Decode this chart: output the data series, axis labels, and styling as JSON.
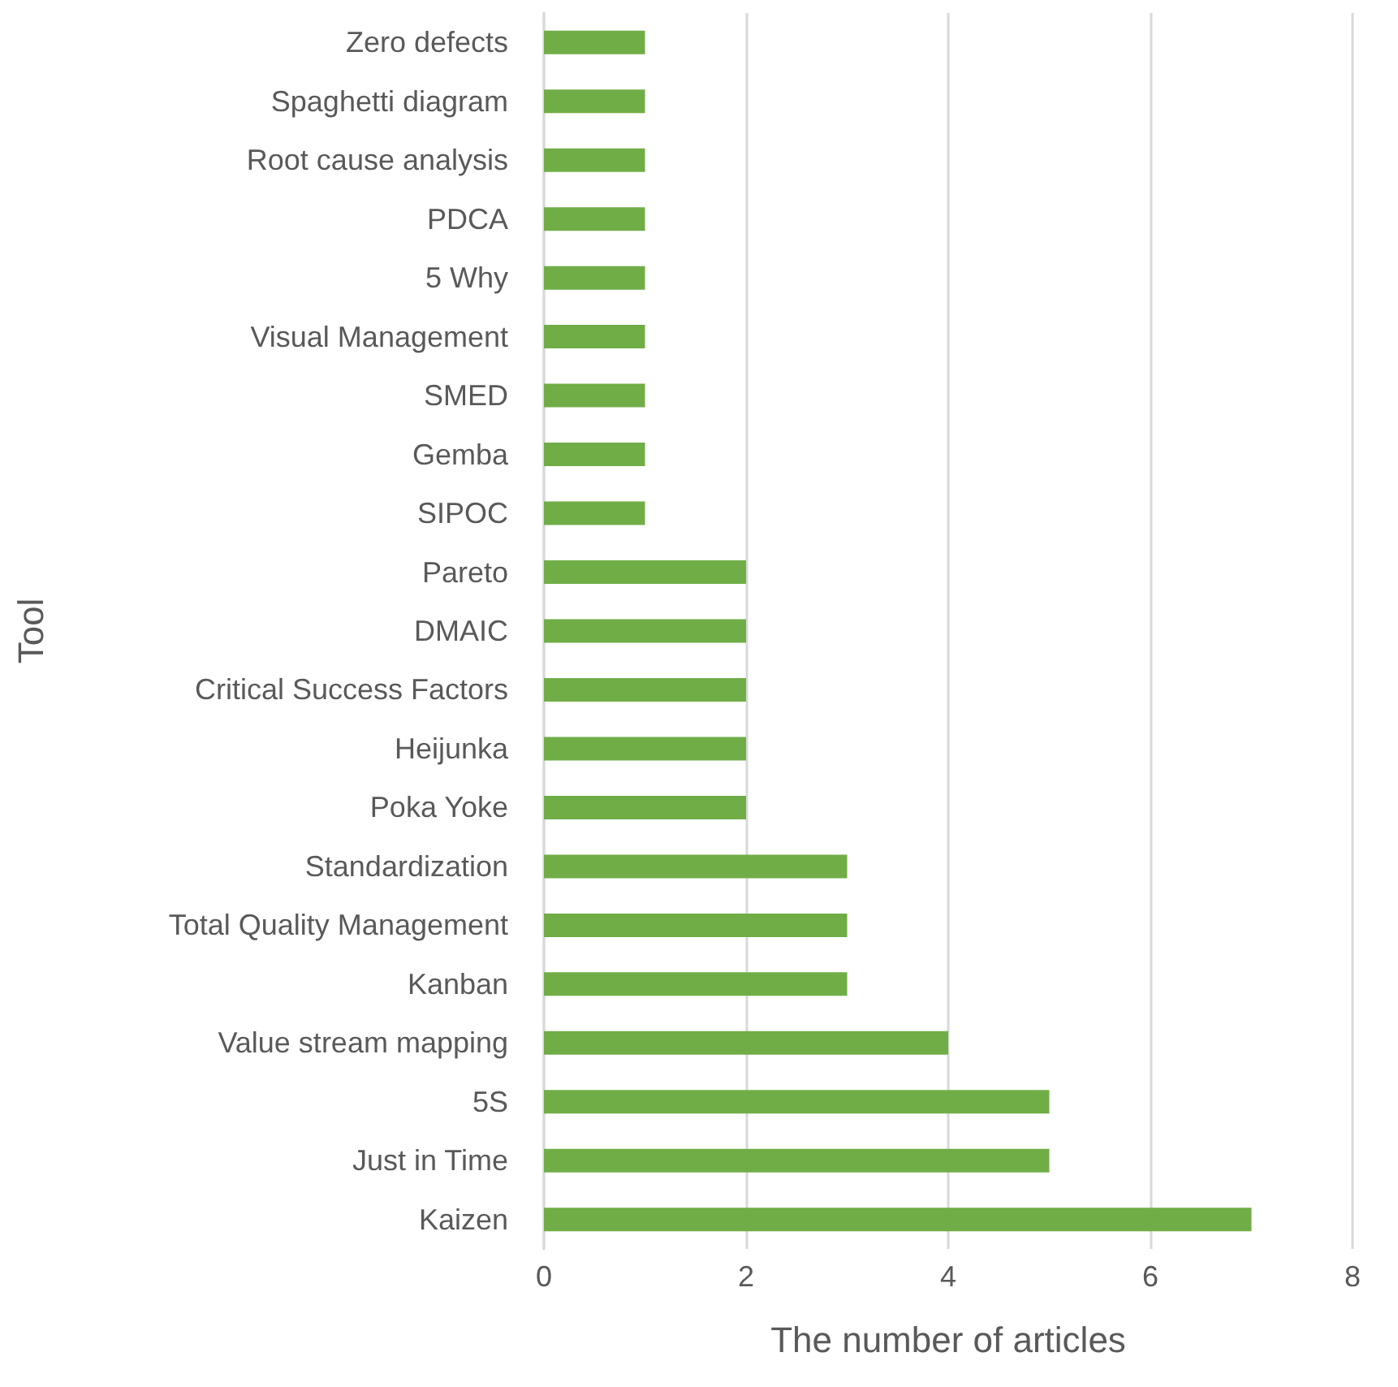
{
  "chart_data": {
    "type": "bar",
    "orientation": "horizontal",
    "xlabel": "The number of articles",
    "ylabel": "Tool",
    "categories": [
      "Zero defects",
      "Spaghetti diagram",
      "Root cause analysis",
      "PDCA",
      "5 Why",
      "Visual Management",
      "SMED",
      "Gemba",
      "SIPOC",
      "Pareto",
      "DMAIC",
      "Critical Success Factors",
      "Heijunka",
      "Poka Yoke",
      "Standardization",
      "Total Quality Management",
      "Kanban",
      "Value stream mapping",
      "5S",
      "Just in Time",
      "Kaizen"
    ],
    "values": [
      1,
      1,
      1,
      1,
      1,
      1,
      1,
      1,
      1,
      2,
      2,
      2,
      2,
      2,
      3,
      3,
      3,
      4,
      5,
      5,
      7
    ],
    "color": "#70ad47",
    "xlim": [
      0,
      8
    ],
    "xticks": [
      0,
      2,
      4,
      6,
      8
    ],
    "grid": "x"
  }
}
